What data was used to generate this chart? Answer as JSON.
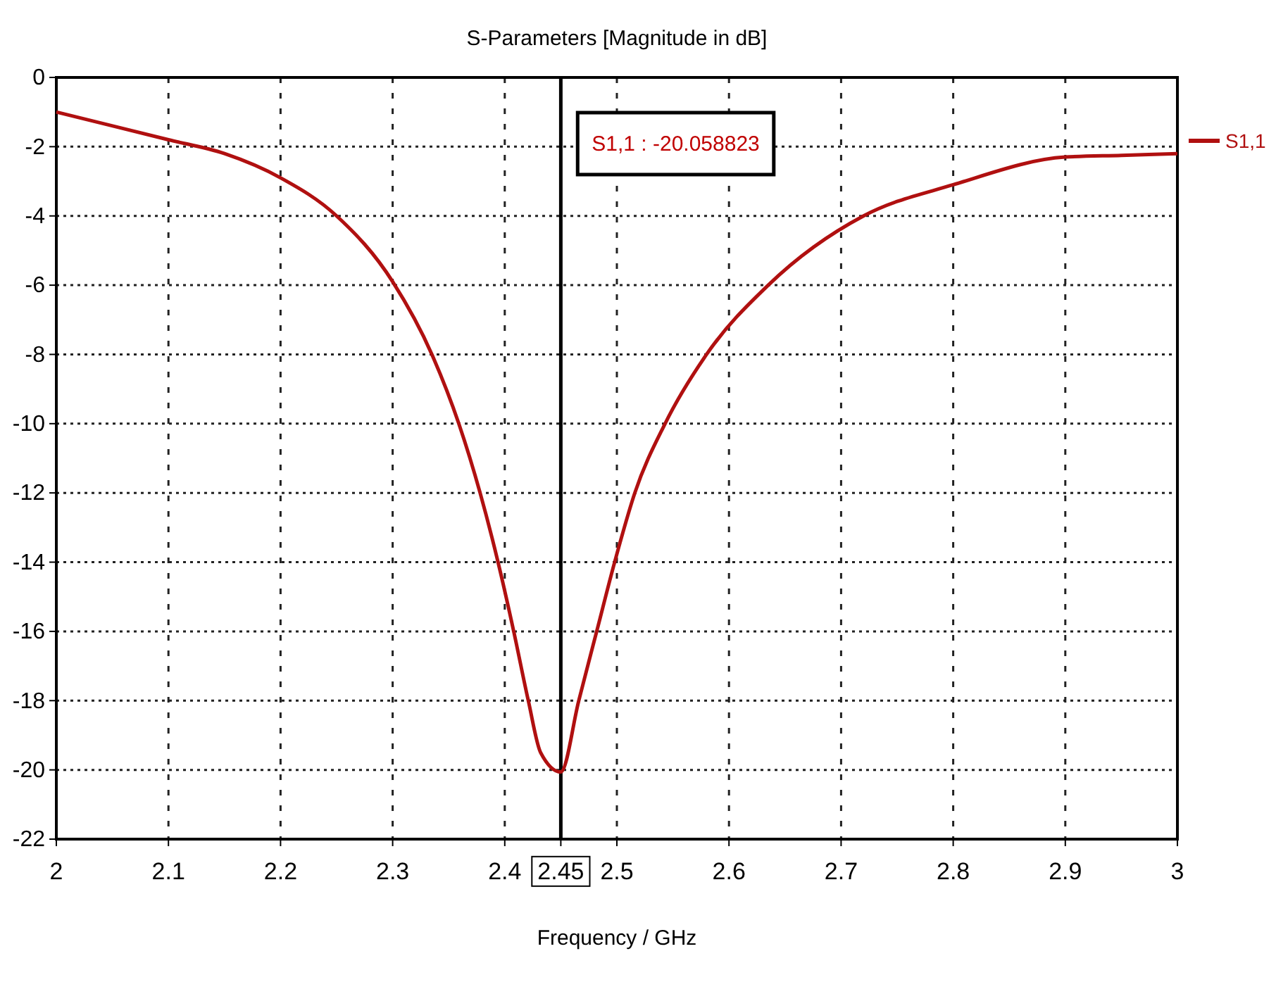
{
  "chart_data": {
    "type": "line",
    "title": "S-Parameters [Magnitude in dB]",
    "xlabel": "Frequency / GHz",
    "xlim": [
      2,
      3
    ],
    "ylim": [
      -22,
      0
    ],
    "xticks": [
      2,
      2.1,
      2.2,
      2.3,
      2.4,
      {
        "value": 2.45,
        "label": "2.45"
      },
      2.5,
      2.6,
      2.7,
      2.8,
      2.9,
      3
    ],
    "yticks": [
      0,
      -2,
      -4,
      -6,
      -8,
      -10,
      -12,
      -14,
      -16,
      -18,
      -20,
      -22
    ],
    "grid": true,
    "legend": "top right",
    "line_style": "solid",
    "marker": "none",
    "ref_lines": [
      {
        "axis": "x",
        "value": 2.45,
        "color": "#000000"
      }
    ],
    "annotations": [
      "S1,1 : -20.058823"
    ],
    "series": [
      {
        "name": "S1,1",
        "color": "#b01010",
        "x": [
          2,
          2.1,
          2.15,
          2.2,
          2.25,
          2.3,
          2.335,
          2.359,
          2.378,
          2.394,
          2.408,
          2.421,
          2.432,
          2.45,
          2.466,
          2.482,
          2.498,
          2.516,
          2.543,
          2.58,
          2.635,
          2.72,
          2.8,
          2.9,
          2.95,
          3
        ],
        "values": [
          -1,
          -1.8,
          -2.2,
          -2.9,
          -4,
          -5.9,
          -8,
          -10,
          -12,
          -14,
          -16,
          -18,
          -19.5,
          -20.06,
          -18,
          -16,
          -14,
          -12,
          -10,
          -8,
          -6,
          -4,
          -3.1,
          -2.3,
          -2.25,
          -2.2
        ]
      }
    ]
  }
}
